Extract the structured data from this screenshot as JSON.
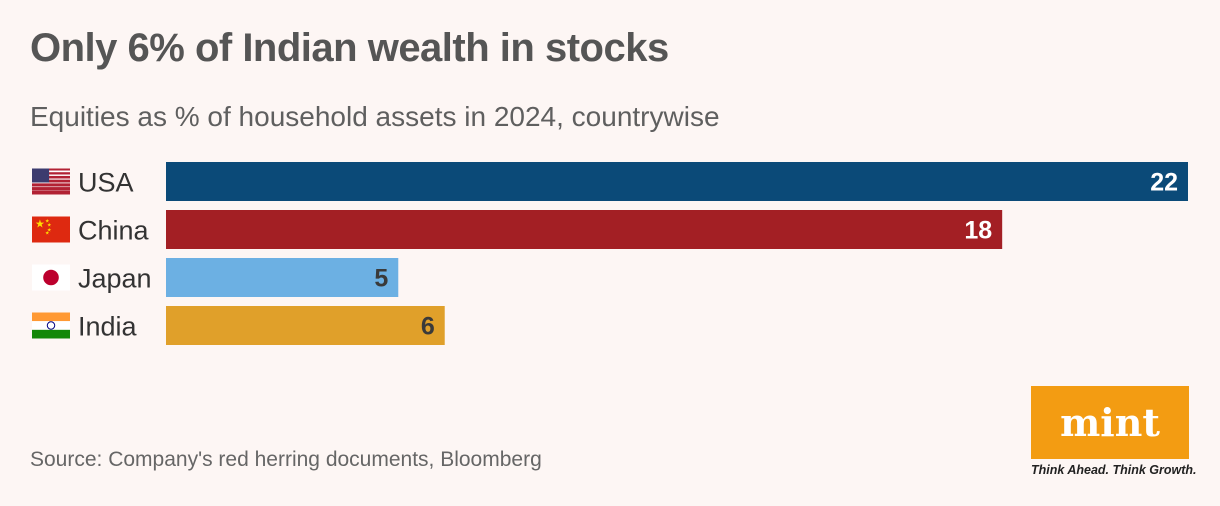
{
  "brand": {
    "logo_text": "mint",
    "tagline": "Think Ahead. Think Growth."
  },
  "source": "Source: Company's red herring documents, Bloomberg",
  "chart_data": {
    "type": "bar",
    "orientation": "horizontal",
    "title": "Only 6% of Indian wealth in stocks",
    "subtitle": "Equities as % of household assets in 2024, countrywise",
    "categories": [
      "USA",
      "China",
      "Japan",
      "India"
    ],
    "values": [
      22,
      18,
      5,
      6
    ],
    "colors": [
      "#0b4a78",
      "#a31f24",
      "#6cb0e3",
      "#e0a02a"
    ],
    "label_colors": [
      "#ffffff",
      "#ffffff",
      "#3a3a3a",
      "#3a3a3a"
    ],
    "flags": [
      "usa-flag-icon",
      "china-flag-icon",
      "japan-flag-icon",
      "india-flag-icon"
    ],
    "xlim": [
      0,
      22
    ],
    "grid": false,
    "axes": false
  }
}
